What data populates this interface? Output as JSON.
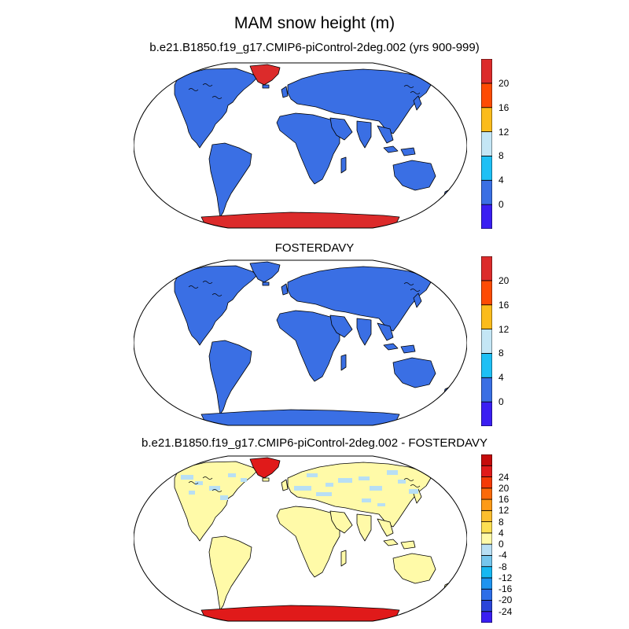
{
  "title": "MAM snow height (m)",
  "panels": [
    {
      "title": "b.e21.B1850.f19_g17.CMIP6-piControl-2deg.002 (yrs 900-999)",
      "colorbar": {
        "colors": [
          "#3a1ef2",
          "#3a6fe4",
          "#1ec0f5",
          "#c4e6f5",
          "#fbbc1c",
          "#fd4b04",
          "#dc2b2b"
        ],
        "labels": [
          "0",
          "4",
          "8",
          "12",
          "16",
          "20"
        ]
      },
      "fills": {
        "land": "#3a6fe4",
        "greenland": "#dc2b2b",
        "antarctica": "#dc2b2b",
        "patches": ""
      }
    },
    {
      "title": "FOSTERDAVY",
      "colorbar": {
        "colors": [
          "#3a1ef2",
          "#3a6fe4",
          "#1ec0f5",
          "#c4e6f5",
          "#fbbc1c",
          "#fd4b04",
          "#dc2b2b"
        ],
        "labels": [
          "0",
          "4",
          "8",
          "12",
          "16",
          "20"
        ]
      },
      "fills": {
        "land": "#3a6fe4",
        "greenland": "#3a6fe4",
        "antarctica": "#3a6fe4",
        "patches": ""
      }
    },
    {
      "title": "b.e21.B1850.f19_g17.CMIP6-piControl-2deg.002 - FOSTERDAVY",
      "colorbar": {
        "colors": [
          "#3a1ef2",
          "#2b45d9",
          "#2d6ee8",
          "#1e94f0",
          "#16b8f2",
          "#75c6ed",
          "#b8dff4",
          "#fffaa8",
          "#fcdf52",
          "#fcbe2e",
          "#fd9a17",
          "#fc6a0a",
          "#f43a06",
          "#e01a1a",
          "#c50b0b"
        ],
        "labels": [
          "-24",
          "-20",
          "-16",
          "-12",
          "-8",
          "-4",
          "0",
          "4",
          "8",
          "12",
          "16",
          "20",
          "24"
        ]
      },
      "fills": {
        "land": "#fffaa8",
        "greenland": "#e01a1a",
        "antarctica": "#e01a1a",
        "patches": "#b8dff4"
      }
    }
  ]
}
